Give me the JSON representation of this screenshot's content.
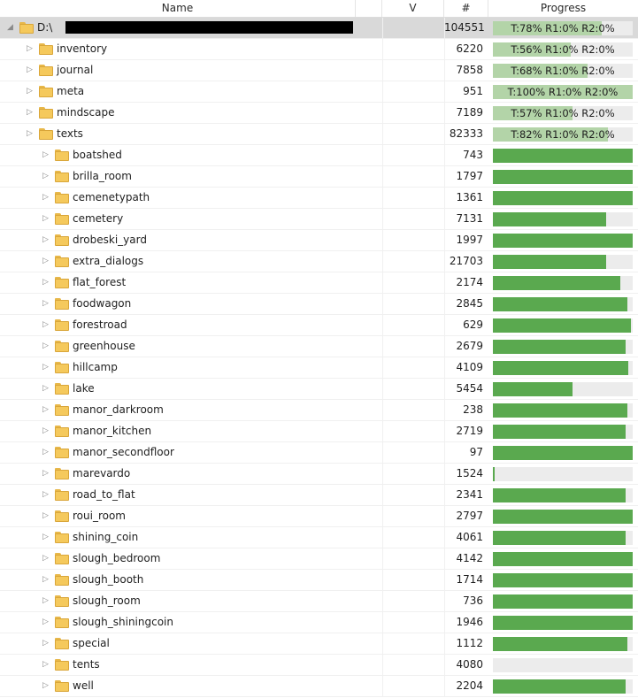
{
  "header": {
    "name": "Name",
    "v": "V",
    "count": "#",
    "progress": "Progress"
  },
  "colors": {
    "fill": "#5aa94f",
    "fill_summary": "#b3d4a8",
    "track": "#ececec"
  },
  "rows": [
    {
      "name": "D:\\",
      "count": "104551",
      "level": 0,
      "expanded": true,
      "root": true,
      "summary": "T:78% R1:0% R2:0%",
      "progress": 0.78
    },
    {
      "name": "inventory",
      "count": "6220",
      "level": 1,
      "expanded": false,
      "summary": "T:56% R1:0% R2:0%",
      "progress": 0.56
    },
    {
      "name": "journal",
      "count": "7858",
      "level": 1,
      "expanded": false,
      "summary": "T:68% R1:0% R2:0%",
      "progress": 0.68
    },
    {
      "name": "meta",
      "count": "951",
      "level": 1,
      "expanded": false,
      "summary": "T:100% R1:0% R2:0%",
      "progress": 1.0
    },
    {
      "name": "mindscape",
      "count": "7189",
      "level": 1,
      "expanded": false,
      "summary": "T:57% R1:0% R2:0%",
      "progress": 0.57
    },
    {
      "name": "texts",
      "count": "82333",
      "level": 1,
      "expanded": false,
      "summary": "T:82% R1:0% R2:0%",
      "progress": 0.82
    },
    {
      "name": "boatshed",
      "count": "743",
      "level": 2,
      "expanded": false,
      "progress": 1.0
    },
    {
      "name": "brilla_room",
      "count": "1797",
      "level": 2,
      "expanded": false,
      "progress": 1.0
    },
    {
      "name": "cemenetypath",
      "count": "1361",
      "level": 2,
      "expanded": false,
      "progress": 1.0
    },
    {
      "name": "cemetery",
      "count": "7131",
      "level": 2,
      "expanded": false,
      "progress": 0.81
    },
    {
      "name": "drobeski_yard",
      "count": "1997",
      "level": 2,
      "expanded": false,
      "progress": 1.0
    },
    {
      "name": "extra_dialogs",
      "count": "21703",
      "level": 2,
      "expanded": false,
      "progress": 0.81
    },
    {
      "name": "flat_forest",
      "count": "2174",
      "level": 2,
      "expanded": false,
      "progress": 0.91
    },
    {
      "name": "foodwagon",
      "count": "2845",
      "level": 2,
      "expanded": false,
      "progress": 0.96
    },
    {
      "name": "forestroad",
      "count": "629",
      "level": 2,
      "expanded": false,
      "progress": 0.99
    },
    {
      "name": "greenhouse",
      "count": "2679",
      "level": 2,
      "expanded": false,
      "progress": 0.95
    },
    {
      "name": "hillcamp",
      "count": "4109",
      "level": 2,
      "expanded": false,
      "progress": 0.97
    },
    {
      "name": "lake",
      "count": "5454",
      "level": 2,
      "expanded": false,
      "progress": 0.57
    },
    {
      "name": "manor_darkroom",
      "count": "238",
      "level": 2,
      "expanded": false,
      "progress": 0.96
    },
    {
      "name": "manor_kitchen",
      "count": "2719",
      "level": 2,
      "expanded": false,
      "progress": 0.95
    },
    {
      "name": "manor_secondfloor",
      "count": "97",
      "level": 2,
      "expanded": false,
      "progress": 1.0
    },
    {
      "name": "marevardo",
      "count": "1524",
      "level": 2,
      "expanded": false,
      "progress": 0.01
    },
    {
      "name": "road_to_flat",
      "count": "2341",
      "level": 2,
      "expanded": false,
      "progress": 0.95
    },
    {
      "name": "roui_room",
      "count": "2797",
      "level": 2,
      "expanded": false,
      "progress": 1.0
    },
    {
      "name": "shining_coin",
      "count": "4061",
      "level": 2,
      "expanded": false,
      "progress": 0.95
    },
    {
      "name": "slough_bedroom",
      "count": "4142",
      "level": 2,
      "expanded": false,
      "progress": 1.0
    },
    {
      "name": "slough_booth",
      "count": "1714",
      "level": 2,
      "expanded": false,
      "progress": 1.0
    },
    {
      "name": "slough_room",
      "count": "736",
      "level": 2,
      "expanded": false,
      "progress": 1.0
    },
    {
      "name": "slough_shiningcoin",
      "count": "1946",
      "level": 2,
      "expanded": false,
      "progress": 1.0
    },
    {
      "name": "special",
      "count": "1112",
      "level": 2,
      "expanded": false,
      "progress": 0.96
    },
    {
      "name": "tents",
      "count": "4080",
      "level": 2,
      "expanded": false,
      "progress": 0.0
    },
    {
      "name": "well",
      "count": "2204",
      "level": 2,
      "expanded": false,
      "progress": 0.95
    }
  ]
}
